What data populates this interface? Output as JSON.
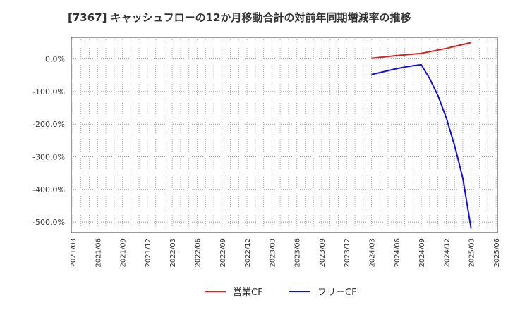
{
  "chart_data": {
    "type": "line",
    "title": "[7367]  キャッシュフローの12か月移動合計の対前年同期増減率の推移",
    "xlabel": "",
    "ylabel": "",
    "ylim": [
      -532,
      66
    ],
    "yticks": [
      0,
      -100,
      -200,
      -300,
      -400,
      -500
    ],
    "ytick_labels": [
      "0.0%",
      "-100.0%",
      "-200.0%",
      "-300.0%",
      "-400.0%",
      "-500.0%"
    ],
    "x_categories": [
      "2021/03",
      "2021/06",
      "2021/09",
      "2021/12",
      "2022/03",
      "2022/06",
      "2022/09",
      "2022/12",
      "2023/03",
      "2023/06",
      "2023/09",
      "2023/12",
      "2024/03",
      "2024/06",
      "2024/09",
      "2024/12",
      "2025/03",
      "2025/06"
    ],
    "grid": true,
    "legend_position": "bottom",
    "series": [
      {
        "name": "営業CF",
        "color": "#e02020",
        "x": [
          "2024/03",
          "2024/06",
          "2024/09",
          "2024/12",
          "2025/03"
        ],
        "values": [
          2,
          10,
          17,
          32,
          50
        ]
      },
      {
        "name": "フリーCF",
        "color": "#1010d8",
        "x": [
          "2024/03",
          "2024/04",
          "2024/05",
          "2024/06",
          "2024/07",
          "2024/08",
          "2024/09",
          "2024/10",
          "2024/11",
          "2024/12",
          "2025/01",
          "2025/02",
          "2025/03"
        ],
        "values": [
          -48,
          -42,
          -36,
          -30,
          -25,
          -21,
          -18,
          -60,
          -112,
          -180,
          -265,
          -365,
          -520
        ]
      }
    ]
  }
}
